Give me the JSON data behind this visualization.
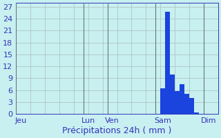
{
  "title": "",
  "xlabel": "Précipitations 24h ( mm )",
  "ylabel": "",
  "background_color": "#c8f0f0",
  "bar_color": "#1a44dd",
  "grid_color": "#aabbbb",
  "ylim": [
    0,
    28
  ],
  "yticks": [
    0,
    3,
    6,
    9,
    12,
    15,
    18,
    21,
    24,
    27
  ],
  "bar_values": [
    0,
    0,
    0,
    0,
    0,
    0,
    0,
    0,
    0,
    0,
    0,
    0,
    0,
    0,
    0,
    0,
    0,
    0,
    0,
    0,
    0,
    0,
    0,
    0,
    0,
    0,
    0,
    0,
    0,
    0,
    6.5,
    25.8,
    10.0,
    5.8,
    7.5,
    5.0,
    4.0,
    0.3,
    0,
    0,
    0,
    0
  ],
  "n_bars": 42,
  "day_labels": [
    "Jeu",
    "Lun",
    "Ven",
    "Sam",
    "Dim"
  ],
  "day_tick_positions": [
    0.5,
    14.5,
    19.5,
    30.0,
    39.5
  ],
  "vline_positions": [
    0,
    14,
    19,
    29,
    39
  ],
  "tick_label_color": "#3333bb",
  "axis_color": "#3333bb",
  "font_size_label": 9,
  "font_size_tick": 8
}
